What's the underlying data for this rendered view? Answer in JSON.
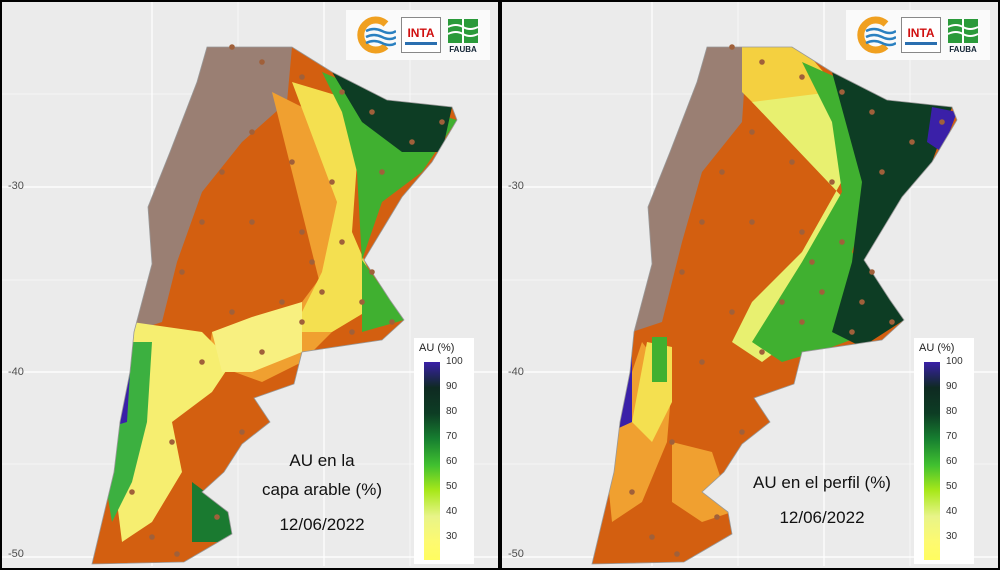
{
  "panels": [
    {
      "title_lines": [
        "AU en la",
        "capa arable (%)"
      ],
      "date": "12/06/2022"
    },
    {
      "title_lines": [
        "AU en el perfil (%)"
      ],
      "date": "12/06/2022"
    }
  ],
  "axis": {
    "y_ticks": [
      "-30",
      "-40",
      "-50"
    ]
  },
  "legend": {
    "title": "AU (%)",
    "ticks": [
      "100",
      "90",
      "80",
      "70",
      "60",
      "50",
      "40",
      "30"
    ],
    "colors": [
      "#3a20a8",
      "#0e2a22",
      "#0d3d24",
      "#178030",
      "#40c030",
      "#a8e81a",
      "#e8f488",
      "#fffd60"
    ]
  },
  "logos": {
    "inta": "INTA",
    "fauba": "FAUBA"
  }
}
